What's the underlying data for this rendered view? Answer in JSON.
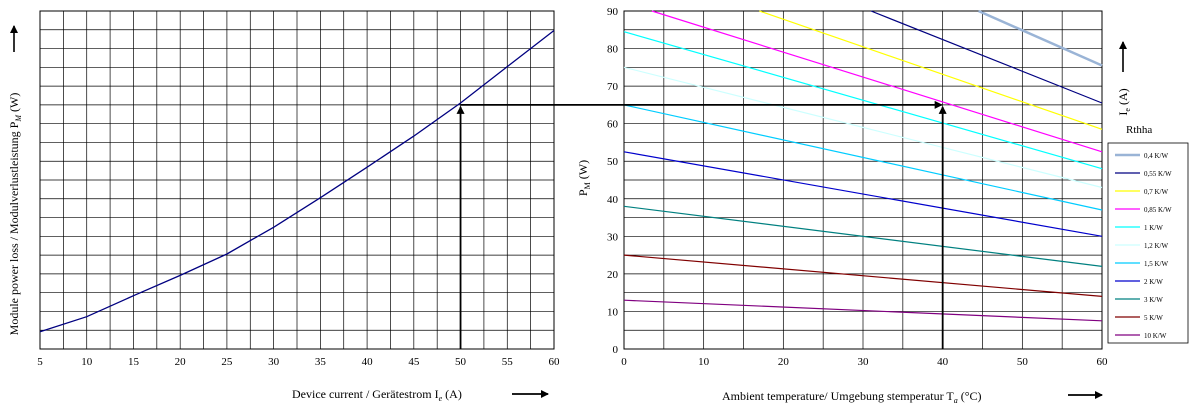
{
  "chart_data": [
    {
      "type": "line",
      "xlabel": "Device current / Gerätestrom I",
      "xlabel_sub": "e",
      "xlabel_unit": " (A)",
      "ylabel": "Module power loss / Modulverlustleistung P",
      "ylabel_sub": "M",
      "ylabel_unit": " (W)",
      "xlim": [
        5,
        60
      ],
      "xticks": [
        "5",
        "10",
        "15",
        "20",
        "25",
        "30",
        "35",
        "40",
        "45",
        "50",
        "55",
        "60"
      ],
      "ylim": [
        0,
        90
      ],
      "grid": true,
      "series": [
        {
          "color": "#000080",
          "x": [
            5,
            10,
            15,
            20,
            25,
            30,
            35,
            40,
            45,
            50,
            55,
            60
          ],
          "y": [
            4.6,
            8.6,
            14.2,
            19.6,
            25.3,
            32.4,
            40.3,
            48.4,
            56.7,
            65.5,
            75.2,
            84.8
          ]
        }
      ],
      "guide": {
        "x": 50,
        "y": 65
      }
    },
    {
      "type": "line",
      "xlabel": "Ambient temperature/ Umgebung stemperatur T",
      "xlabel_sub": "a",
      "xlabel_unit": " (°C)",
      "ylabel": "P",
      "ylabel_sub": "M",
      "ylabel_unit": " (W)",
      "right_label": "I",
      "right_label_sub": "e",
      "right_label_unit": " (A)",
      "xlim": [
        0,
        60
      ],
      "xticks": [
        "0",
        "10",
        "20",
        "30",
        "40",
        "50",
        "60"
      ],
      "ylim": [
        0,
        90
      ],
      "yticks": [
        "0",
        "10",
        "20",
        "30",
        "40",
        "50",
        "60",
        "70",
        "80",
        "90"
      ],
      "grid": true,
      "legend_title": "Rthha",
      "legend_position": "right",
      "series": [
        {
          "name": "0,4 K/W",
          "color": "#9ab4d6",
          "width": 2.5,
          "x": [
            44.5,
            60
          ],
          "y": [
            90,
            75.5
          ]
        },
        {
          "name": "0,55 K/W",
          "color": "#000080",
          "width": 1.2,
          "x": [
            31,
            60
          ],
          "y": [
            90,
            65.5
          ]
        },
        {
          "name": "0,7 K/W",
          "color": "#ffff00",
          "width": 1.2,
          "x": [
            17,
            60
          ],
          "y": [
            90,
            58.5
          ]
        },
        {
          "name": "0,85 K/W",
          "color": "#ff00ff",
          "width": 1.2,
          "x": [
            3.5,
            60
          ],
          "y": [
            90,
            52.5
          ]
        },
        {
          "name": "1 K/W",
          "color": "#00ffff",
          "width": 1.2,
          "x": [
            0,
            60
          ],
          "y": [
            84.5,
            48
          ]
        },
        {
          "name": "1,2 K/W",
          "color": "#ccffff",
          "width": 1.2,
          "x": [
            0,
            60
          ],
          "y": [
            75,
            43
          ]
        },
        {
          "name": "1,5 K/W",
          "color": "#00ccff",
          "width": 1.2,
          "x": [
            0,
            60
          ],
          "y": [
            65,
            37
          ]
        },
        {
          "name": "2 K/W",
          "color": "#0000cc",
          "width": 1.2,
          "x": [
            0,
            60
          ],
          "y": [
            52.5,
            30
          ]
        },
        {
          "name": "3 K/W",
          "color": "#008080",
          "width": 1.2,
          "x": [
            0,
            60
          ],
          "y": [
            38,
            22
          ]
        },
        {
          "name": "5 K/W",
          "color": "#800000",
          "width": 1.2,
          "x": [
            0,
            60
          ],
          "y": [
            25,
            14
          ]
        },
        {
          "name": "10 K/W",
          "color": "#800080",
          "width": 1.2,
          "x": [
            0,
            60
          ],
          "y": [
            13,
            7.5
          ]
        }
      ],
      "guide": {
        "x": 40,
        "y": 65
      }
    }
  ]
}
